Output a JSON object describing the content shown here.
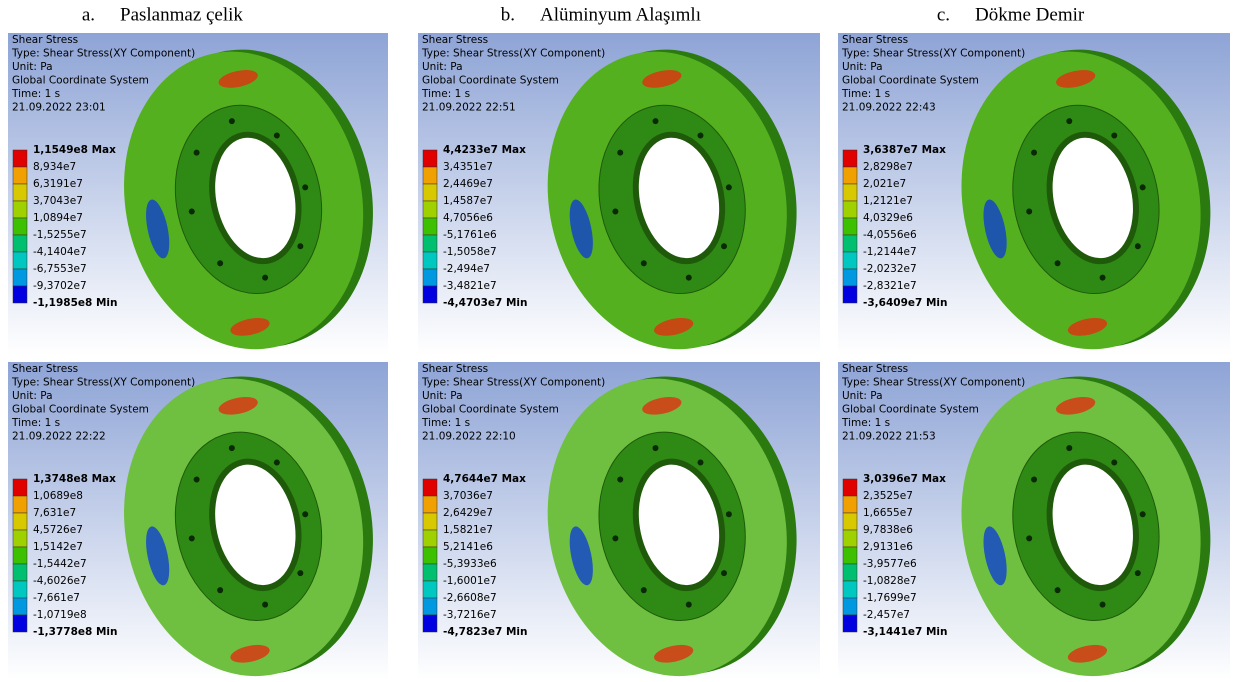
{
  "columns": [
    {
      "label": "a.",
      "title": "Paslanmaz çelik"
    },
    {
      "label": "b.",
      "title": "Alüminyum Alaşımlı"
    },
    {
      "label": "c.",
      "title": "Dökme Demir"
    }
  ],
  "panels": [
    {
      "title": "Shear Stress",
      "type": "Type: Shear Stress(XY Component)",
      "unit": "Unit: Pa",
      "system": "Global Coordinate System",
      "time": "Time: 1 s",
      "date": "21.09.2022 23:01",
      "legend": [
        "1,1549e8 Max",
        "8,934e7",
        "6,3191e7",
        "3,7043e7",
        "1,0894e7",
        "-1,5255e7",
        "-4,1404e7",
        "-6,7553e7",
        "-9,3702e7",
        "-1,1985e8 Min"
      ]
    },
    {
      "title": "Shear Stress",
      "type": "Type: Shear Stress(XY Component)",
      "unit": "Unit: Pa",
      "system": "Global Coordinate System",
      "time": "Time: 1 s",
      "date": "21.09.2022 22:51",
      "legend": [
        "4,4233e7 Max",
        "3,4351e7",
        "2,4469e7",
        "1,4587e7",
        "4,7056e6",
        "-5,1761e6",
        "-1,5058e7",
        "-2,494e7",
        "-3,4821e7",
        "-4,4703e7 Min"
      ]
    },
    {
      "title": "Shear Stress",
      "type": "Type: Shear Stress(XY Component)",
      "unit": "Unit: Pa",
      "system": "Global Coordinate System",
      "time": "Time: 1 s",
      "date": "21.09.2022 22:43",
      "legend": [
        "3,6387e7 Max",
        "2,8298e7",
        "2,021e7",
        "1,2121e7",
        "4,0329e6",
        "-4,0556e6",
        "-1,2144e7",
        "-2,0232e7",
        "-2,8321e7",
        "-3,6409e7 Min"
      ]
    },
    {
      "title": "Shear Stress",
      "type": "Type: Shear Stress(XY Component)",
      "unit": "Unit: Pa",
      "system": "Global Coordinate System",
      "time": "Time: 1 s",
      "date": "21.09.2022 22:22",
      "legend": [
        "1,3748e8 Max",
        "1,0689e8",
        "7,631e7",
        "4,5726e7",
        "1,5142e7",
        "-1,5442e7",
        "-4,6026e7",
        "-7,661e7",
        "-1,0719e8",
        "-1,3778e8 Min"
      ]
    },
    {
      "title": "Shear Stress",
      "type": "Type: Shear Stress(XY Component)",
      "unit": "Unit: Pa",
      "system": "Global Coordinate System",
      "time": "Time: 1 s",
      "date": "21.09.2022 22:10",
      "legend": [
        "4,7644e7 Max",
        "3,7036e7",
        "2,6429e7",
        "1,5821e7",
        "5,2141e6",
        "-5,3933e6",
        "-1,6001e7",
        "-2,6608e7",
        "-3,7216e7",
        "-4,7823e7 Min"
      ]
    },
    {
      "title": "Shear Stress",
      "type": "Type: Shear Stress(XY Component)",
      "unit": "Unit: Pa",
      "system": "Global Coordinate System",
      "time": "Time: 1 s",
      "date": "21.09.2022 21:53",
      "legend": [
        "3,0396e7 Max",
        "2,3525e7",
        "1,6655e7",
        "9,7838e6",
        "2,9131e6",
        "-3,9577e6",
        "-1,0828e7",
        "-1,7699e7",
        "-2,457e7",
        "-3,1441e7 Min"
      ]
    }
  ]
}
